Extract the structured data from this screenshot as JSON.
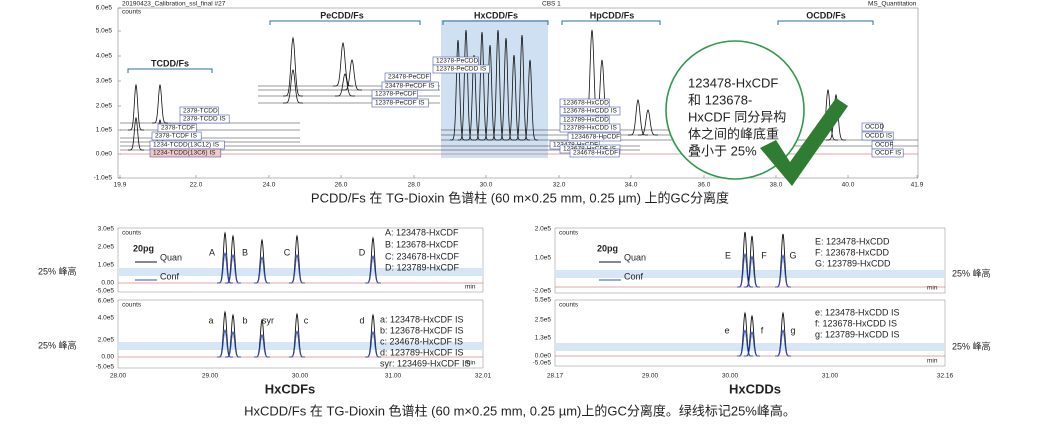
{
  "top": {
    "file": "20190423_Calibration_ssl_final #27",
    "units": "counts",
    "channel": "CBS 1",
    "method": "MS_Quantitation",
    "yticks": [
      "6.0e5",
      "5.0e5",
      "4.0e5",
      "3.0e5",
      "2.0e5",
      "1.0e5",
      "0.0e0",
      "-1.0e5"
    ],
    "xticks": [
      "19.9",
      "22.0",
      "24.0",
      "26.0",
      "28.0",
      "30.0",
      "32.0",
      "34.0",
      "36.0",
      "38.0",
      "40.0",
      "41.9"
    ],
    "groups": [
      "TCDD/Fs",
      "PeCDD/Fs",
      "HxCDD/Fs",
      "HpCDD/Fs",
      "OCDD/Fs"
    ],
    "compounds": [
      "2378-TCDD",
      "2378-TCDD IS",
      "2378-TCDF",
      "2378-TCDF IS",
      "1234-TCDD(13C12) IS",
      "1234-TCDD(13C6) IS",
      "12378-PeCDD",
      "12378-PeCDD IS",
      "23478-PeCDF",
      "23478-PeCDF IS",
      "12378-PeCDF",
      "12378-PeCDF IS",
      "123678-HxCDD",
      "123678-HxCDD IS",
      "123789-HxCDD",
      "123789-HxCDD IS",
      "1234678-HpCDF",
      "123478-HxCDF",
      "123678-HxCDF IS",
      "234678-HxCDF",
      "OCDD",
      "OCDD IS",
      "OCDF",
      "OCDF IS"
    ],
    "callout": [
      "123478-HxCDF",
      "和 123678-",
      "HxCDF 同分异构",
      "体之间的峰底重",
      "叠小于 25%"
    ],
    "caption": "PCDD/Fs 在 TG-Dioxin 色谱柱 (60 m×0.25 mm, 0.25 µm) 上的GC分离度"
  },
  "hxcdf": {
    "title": "HxCDFs",
    "xticks": [
      "28.00",
      "29.00",
      "30.00",
      "31.00",
      "32.01"
    ],
    "xunit": "min",
    "units": "counts",
    "amount": "20pg",
    "quan": "Quan",
    "conf": "Conf",
    "band_label": [
      "25% 峰高",
      "25% 峰高"
    ],
    "panels": [
      {
        "yticks": [
          "3.0e5",
          "2.0e5",
          "1.0e5",
          "0.00",
          "-5.0e5"
        ],
        "peaks": [
          "A",
          "B",
          "C",
          "D"
        ],
        "legend": [
          "A: 123478-HxCDF",
          "B: 123678-HxCDF",
          "C: 234678-HxCDF",
          "D: 123789-HxCDF"
        ]
      },
      {
        "yticks": [
          "6.0e5",
          "4.0e5",
          "2.0e5",
          "0.00",
          "-5.0e5"
        ],
        "peaks": [
          "a",
          "b",
          "syr",
          "c",
          "d"
        ],
        "legend": [
          "a: 123478-HxCDF IS",
          "b: 123678-HxCDF IS",
          "c: 234678-HxCDF IS",
          "d: 123789-HxCDF IS",
          "syr: 123469-HxCDF IS"
        ]
      }
    ]
  },
  "hxcdd": {
    "title": "HxCDDs",
    "xticks": [
      "28.17",
      "29.00",
      "30.00",
      "31.00",
      "32.16"
    ],
    "xunit": "min",
    "units": "counts",
    "amount": "20pg",
    "quan": "Quan",
    "conf": "Conf",
    "band_label": [
      "25% 峰高",
      "25% 峰高"
    ],
    "panels": [
      {
        "yticks": [
          "2.0e5",
          "1.0e5",
          "-2.0e5"
        ],
        "peaks": [
          "E",
          "F",
          "G"
        ],
        "legend": [
          "E: 123478-HxCDD",
          "F: 123678-HxCDD",
          "G: 123789-HxCDD"
        ]
      },
      {
        "yticks": [
          "5.5e5",
          "2.5e5",
          "1.3e5",
          "0.0e0",
          "-5.0e5"
        ],
        "peaks": [
          "e",
          "f",
          "g"
        ],
        "legend": [
          "e: 123478-HxCDD IS",
          "f: 123678-HxCDD IS",
          "g: 123789-HxCDD IS"
        ]
      }
    ]
  },
  "caption": "HxCDD/Fs 在 TG-Dioxin 色谱柱 (60 m×0.25 mm, 0.25 µm)上的GC分离度。绿线标记25%峰高。"
}
